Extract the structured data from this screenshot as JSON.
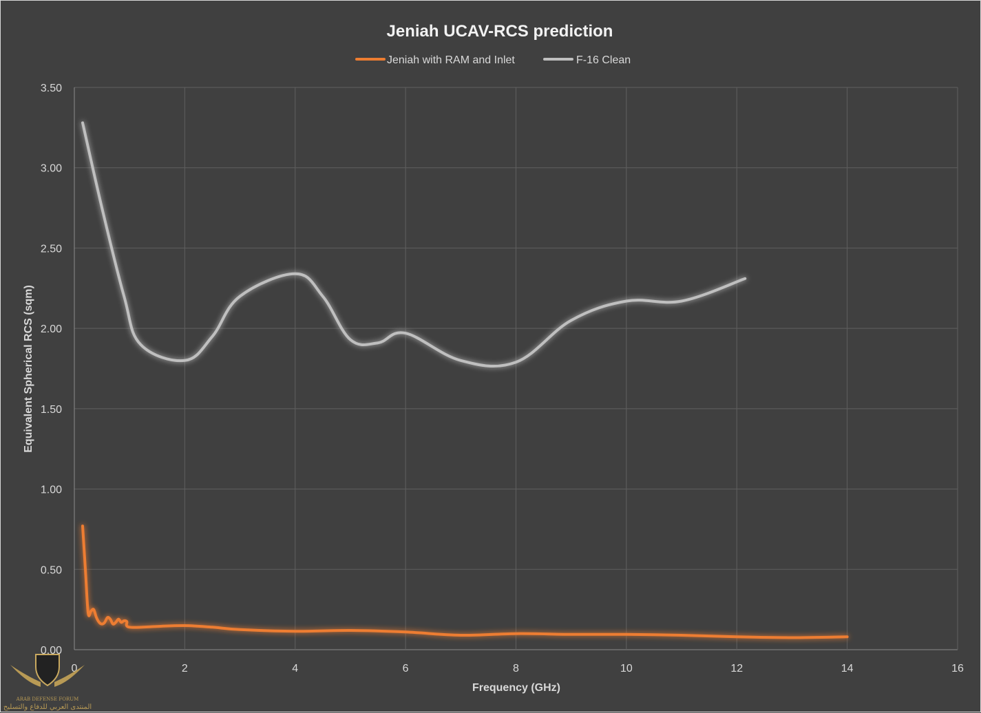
{
  "chart_data": {
    "type": "line",
    "title": "Jeniah UCAV-RCS prediction",
    "xlabel": "Frequency (GHz)",
    "ylabel": "Equivalent Spherical RCS (sqm)",
    "xlim": [
      0,
      16
    ],
    "ylim": [
      0,
      3.5
    ],
    "xticks": [
      0,
      2,
      4,
      6,
      8,
      10,
      12,
      14,
      16
    ],
    "xtick_labels": [
      "0",
      "2",
      "4",
      "6",
      "8",
      "10",
      "12",
      "14",
      "16"
    ],
    "yticks": [
      0,
      0.5,
      1,
      1.5,
      2,
      2.5,
      3,
      3.5
    ],
    "ytick_labels": [
      "0.00",
      "0.50",
      "1.00",
      "1.50",
      "2.00",
      "2.50",
      "3.00",
      "3.50"
    ],
    "grid": true,
    "legend_position": "top",
    "series": [
      {
        "name": "Jeniah with RAM and Inlet",
        "color": "#ed7d31",
        "x": [
          0.15,
          0.2,
          0.25,
          0.3,
          0.35,
          0.4,
          0.45,
          0.5,
          0.55,
          0.6,
          0.65,
          0.7,
          0.75,
          0.8,
          0.85,
          0.9,
          0.95,
          1.0,
          1.5,
          2.0,
          2.5,
          3.0,
          4.0,
          5.0,
          6.0,
          7.0,
          8.0,
          9.0,
          10.0,
          11.0,
          12.0,
          13.0,
          14.0
        ],
        "y": [
          0.77,
          0.5,
          0.23,
          0.24,
          0.25,
          0.2,
          0.17,
          0.16,
          0.17,
          0.2,
          0.19,
          0.16,
          0.17,
          0.19,
          0.17,
          0.18,
          0.175,
          0.14,
          0.145,
          0.15,
          0.14,
          0.125,
          0.115,
          0.12,
          0.11,
          0.09,
          0.1,
          0.095,
          0.095,
          0.09,
          0.08,
          0.075,
          0.08
        ]
      },
      {
        "name": "F-16 Clean",
        "color": "#bfbfbf",
        "x": [
          0.15,
          0.5,
          0.9,
          1.2,
          2.0,
          2.5,
          3.0,
          4.0,
          4.5,
          5.0,
          5.5,
          6.0,
          7.0,
          8.0,
          9.0,
          10.0,
          11.0,
          12.15
        ],
        "y": [
          3.28,
          2.75,
          2.2,
          1.9,
          1.8,
          1.95,
          2.2,
          2.34,
          2.2,
          1.93,
          1.91,
          1.97,
          1.8,
          1.79,
          2.05,
          2.17,
          2.17,
          2.31
        ]
      }
    ]
  },
  "watermark": {
    "name": "ARAB DEFENSE FORUM",
    "arabic": "المنتدى العربي للدفاع والتسليح"
  }
}
